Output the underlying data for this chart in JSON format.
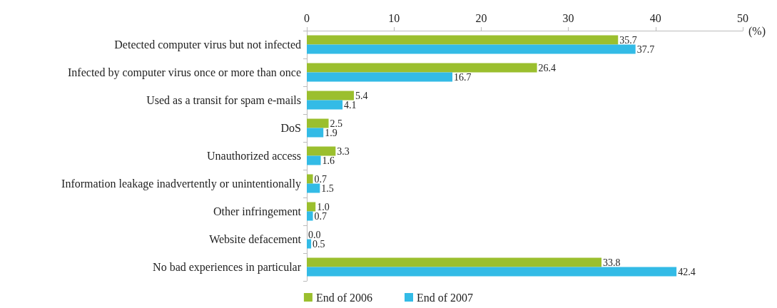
{
  "chart_data": {
    "type": "bar",
    "orientation": "horizontal",
    "categories": [
      "Detected computer virus but not infected",
      "Infected by computer virus once or more than once",
      "Used as a transit for spam e-mails",
      "DoS",
      "Unauthorized access",
      "Information leakage inadvertently or unintentionally",
      "Other infringement",
      "Website defacement",
      "No bad experiences in particular"
    ],
    "series": [
      {
        "name": "End of 2006",
        "color": "#9bbf2e",
        "values": [
          35.7,
          26.4,
          5.4,
          2.5,
          3.3,
          0.7,
          1.0,
          0.0,
          33.8
        ],
        "value_labels": [
          "35.7",
          "26.4",
          "5.4",
          "2.5",
          "3.3",
          "0.7",
          "1.0",
          "0.0",
          "33.8"
        ]
      },
      {
        "name": "End of 2007",
        "color": "#33bbe6",
        "values": [
          37.7,
          16.7,
          4.1,
          1.9,
          1.6,
          1.5,
          0.7,
          0.5,
          42.4
        ],
        "value_labels": [
          "37.7",
          "16.7",
          "4.1",
          "1.9",
          "1.6",
          "1.5",
          "0.7",
          "0.5",
          "42.4"
        ]
      }
    ],
    "xlabel": "(%)",
    "xlim": [
      0,
      50
    ],
    "xticks": [
      0,
      10,
      20,
      30,
      40,
      50
    ],
    "grid": false,
    "legend": "bottom"
  }
}
